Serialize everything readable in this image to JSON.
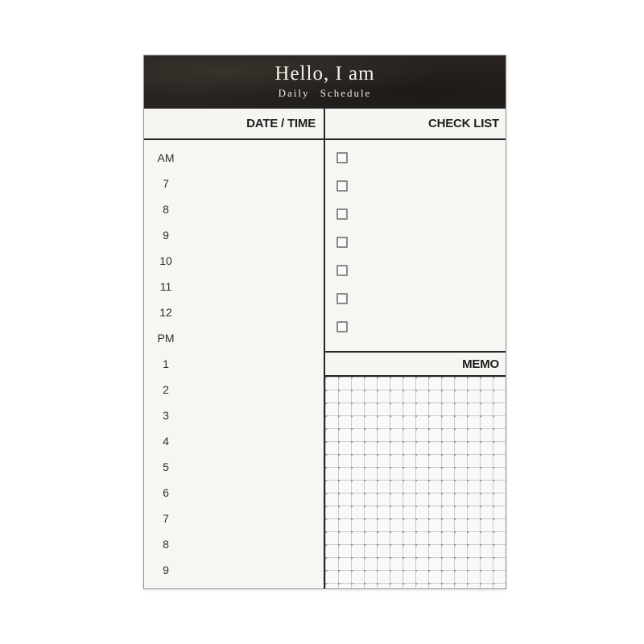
{
  "pad": {
    "header": {
      "title": "Hello, I am",
      "subtitle": "Daily Schedule"
    },
    "table_header": {
      "date_time": "DATE / TIME",
      "check_list": "CHECK LIST"
    },
    "schedule": {
      "time_slots": [
        "AM",
        "7",
        "8",
        "9",
        "10",
        "11",
        "12",
        "PM",
        "1",
        "2",
        "3",
        "4",
        "5",
        "6",
        "7",
        "8",
        "9"
      ]
    },
    "checklist": {
      "checkbox_states": [
        false,
        false,
        false,
        false,
        false,
        false,
        false
      ]
    },
    "memo": {
      "label": "MEMO"
    }
  },
  "colors": {
    "page_bg": "#ffffff",
    "paper": "#f7f6f3",
    "header_band_bg": "#282320",
    "header_band_text": "#f3f1ea",
    "rule_dark": "#262626",
    "grid_line": "#cbcbcc",
    "checkbox_border": "#8a8a8a"
  }
}
